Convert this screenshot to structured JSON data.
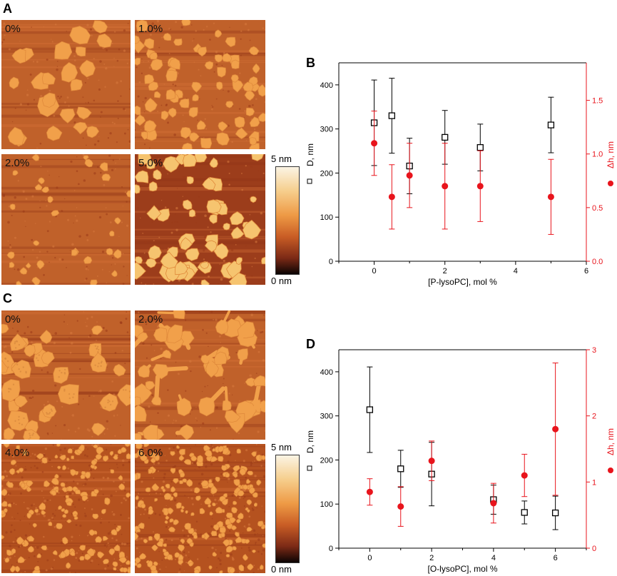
{
  "panels": {
    "A": {
      "letter": "A",
      "images": [
        {
          "label": "0%",
          "density": "low"
        },
        {
          "label": "1.0%",
          "density": "medium"
        },
        {
          "label": "2.0%",
          "density": "sparse"
        },
        {
          "label": "5.0%",
          "density": "high"
        }
      ],
      "colorbar": {
        "top": "5 nm",
        "bottom": "0 nm"
      }
    },
    "C": {
      "letter": "C",
      "images": [
        {
          "label": "0%",
          "density": "low"
        },
        {
          "label": "2.0%",
          "density": "network"
        },
        {
          "label": "4.0%",
          "density": "dots"
        },
        {
          "label": "6.0%",
          "density": "fine"
        }
      ],
      "colorbar": {
        "top": "5 nm",
        "bottom": "0 nm"
      }
    },
    "B": {
      "letter": "B"
    },
    "D": {
      "letter": "D"
    }
  },
  "colors": {
    "black_series": "#000000",
    "red_series": "#e8141c",
    "afm_dark": "#a8401a",
    "afm_light": "#f2a24a"
  },
  "chart_data": [
    {
      "id": "B",
      "type": "scatter",
      "xlabel": "[P-lysoPC], mol %",
      "ylabel": "D, nm",
      "ylabel2": "Δh, nm",
      "xlim": [
        -1,
        6
      ],
      "ylim": [
        0,
        450
      ],
      "ylim2": [
        0,
        1.85
      ],
      "xticks": [
        0,
        2,
        4,
        6
      ],
      "yticks": [
        0,
        100,
        200,
        300,
        400
      ],
      "yticks2": [
        0.0,
        0.5,
        1.0,
        1.5
      ],
      "ytick2_labels": [
        "0.0",
        "0.5",
        "1.0",
        "1.5"
      ],
      "series": [
        {
          "name": "D",
          "axis": "left",
          "marker": "open-square",
          "color": "#000000",
          "x": [
            0,
            0.5,
            1,
            2,
            3,
            5
          ],
          "y": [
            314,
            330,
            216,
            281,
            258,
            309
          ],
          "err": [
            97,
            85,
            63,
            61,
            53,
            63
          ]
        },
        {
          "name": "Δh",
          "axis": "right",
          "marker": "filled-circle",
          "color": "#e8141c",
          "x": [
            0,
            0.5,
            1,
            2,
            3,
            5
          ],
          "y": [
            1.1,
            0.6,
            0.8,
            0.7,
            0.7,
            0.6
          ],
          "err": [
            0.3,
            0.3,
            0.3,
            0.4,
            0.33,
            0.35
          ]
        }
      ]
    },
    {
      "id": "D",
      "type": "scatter",
      "xlabel": "[O-lysoPC], mol %",
      "ylabel": "D, nm",
      "ylabel2": "Δh, nm",
      "xlim": [
        -1,
        7
      ],
      "ylim": [
        0,
        450
      ],
      "ylim2": [
        0,
        3
      ],
      "xticks": [
        0,
        2,
        4,
        6
      ],
      "yticks": [
        0,
        100,
        200,
        300,
        400
      ],
      "yticks2": [
        0,
        1,
        2,
        3
      ],
      "ytick2_labels": [
        "0",
        "1",
        "2",
        "3"
      ],
      "series": [
        {
          "name": "D",
          "axis": "left",
          "marker": "open-square",
          "color": "#000000",
          "x": [
            0,
            1,
            2,
            4,
            5,
            6
          ],
          "y": [
            314,
            180,
            168,
            110,
            81,
            80
          ],
          "err": [
            97,
            42,
            72,
            33,
            26,
            38
          ]
        },
        {
          "name": "Δh",
          "axis": "right",
          "marker": "filled-circle",
          "color": "#e8141c",
          "x": [
            0,
            1,
            2,
            4,
            5,
            6
          ],
          "y": [
            0.85,
            0.63,
            1.32,
            0.68,
            1.1,
            1.8
          ],
          "err": [
            0.2,
            0.3,
            0.3,
            0.3,
            0.32,
            1.0
          ]
        }
      ]
    }
  ]
}
